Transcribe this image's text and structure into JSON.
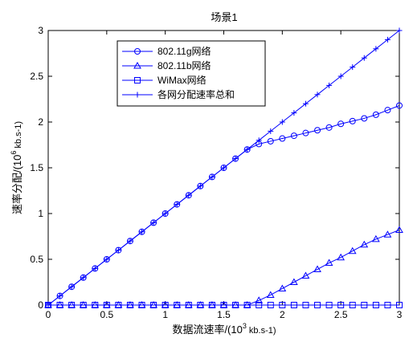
{
  "chart_data": {
    "type": "line",
    "title": "场景1",
    "xlabel": {
      "prefix": "数据流速率/(10",
      "exp": "3",
      "suffix": " kb.s-1)"
    },
    "ylabel": {
      "prefix": "速率分配/(10",
      "exp": "6",
      "suffix": " kb.s-1)"
    },
    "xlim": [
      0,
      3
    ],
    "ylim": [
      0,
      3
    ],
    "xticks": [
      "0",
      "0.5",
      "1",
      "1.5",
      "2",
      "2.5",
      "3"
    ],
    "yticks": [
      "0",
      "0.5",
      "1",
      "1.5",
      "2",
      "2.5",
      "3"
    ],
    "legend_position": "top-left",
    "x": [
      0,
      0.1,
      0.2,
      0.3,
      0.4,
      0.5,
      0.6,
      0.7,
      0.8,
      0.9,
      1.0,
      1.1,
      1.2,
      1.3,
      1.4,
      1.5,
      1.6,
      1.7,
      1.8,
      1.9,
      2.0,
      2.1,
      2.2,
      2.3,
      2.4,
      2.5,
      2.6,
      2.7,
      2.8,
      2.9,
      3.0
    ],
    "series": [
      {
        "name": "802.11g网络",
        "marker": "circle",
        "values": [
          0,
          0.1,
          0.2,
          0.3,
          0.4,
          0.5,
          0.6,
          0.7,
          0.8,
          0.9,
          1.0,
          1.1,
          1.2,
          1.3,
          1.4,
          1.5,
          1.6,
          1.7,
          1.76,
          1.79,
          1.82,
          1.85,
          1.88,
          1.91,
          1.94,
          1.98,
          2.01,
          2.04,
          2.08,
          2.13,
          2.18
        ]
      },
      {
        "name": "802.11b网络",
        "marker": "triangle",
        "values": [
          0,
          0,
          0,
          0,
          0,
          0,
          0,
          0,
          0,
          0,
          0,
          0,
          0,
          0,
          0,
          0,
          0,
          0,
          0.05,
          0.11,
          0.18,
          0.25,
          0.32,
          0.39,
          0.46,
          0.52,
          0.59,
          0.66,
          0.72,
          0.77,
          0.82
        ]
      },
      {
        "name": "WiMax网络",
        "marker": "square",
        "values": [
          0,
          0,
          0,
          0,
          0,
          0,
          0,
          0,
          0,
          0,
          0,
          0,
          0,
          0,
          0,
          0,
          0,
          0,
          0,
          0,
          0,
          0,
          0,
          0,
          0,
          0,
          0,
          0,
          0,
          0,
          0
        ]
      },
      {
        "name": "各网分配速率总和",
        "marker": "plus",
        "values": [
          0,
          0.1,
          0.2,
          0.3,
          0.4,
          0.5,
          0.6,
          0.7,
          0.8,
          0.9,
          1.0,
          1.1,
          1.2,
          1.3,
          1.4,
          1.5,
          1.6,
          1.7,
          1.8,
          1.9,
          2.0,
          2.1,
          2.2,
          2.3,
          2.4,
          2.5,
          2.6,
          2.7,
          2.8,
          2.9,
          3.0
        ]
      }
    ],
    "colors": {
      "series": "#0000ff",
      "axes": "#000000",
      "background": "#ffffff"
    }
  }
}
